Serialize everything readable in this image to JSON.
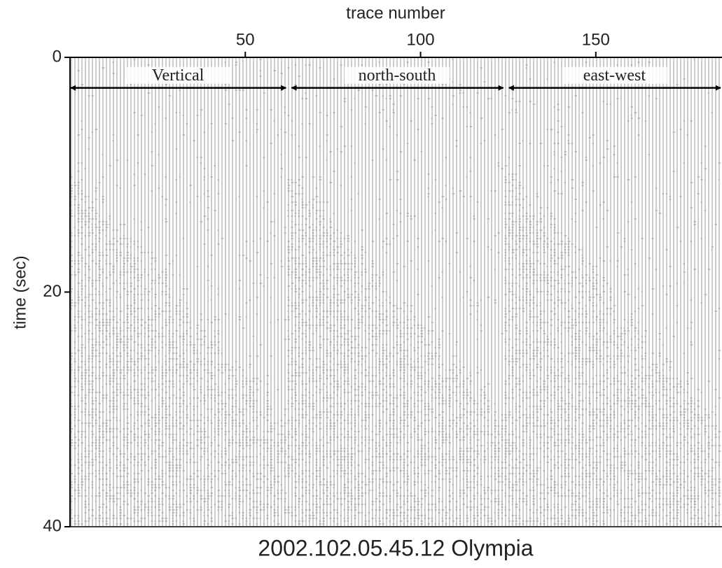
{
  "chart_data": {
    "type": "wiggle",
    "title": "2002.102.05.45.12 Olympia",
    "x_label": "trace number",
    "y_label": "time (sec)",
    "xlim": [
      0,
      186
    ],
    "ylim": [
      0,
      40
    ],
    "xticks": [
      50,
      100,
      150
    ],
    "yticks": [
      0,
      20,
      40
    ],
    "y_inverted": true,
    "x_axis_position": "top",
    "annotations": [
      {
        "text": "Vertical",
        "span": [
          0,
          62
        ],
        "y": 2.6
      },
      {
        "text": "north-south",
        "span": [
          63,
          124
        ],
        "y": 2.6
      },
      {
        "text": "east-west",
        "span": [
          125,
          186
        ],
        "y": 2.6
      }
    ]
  }
}
